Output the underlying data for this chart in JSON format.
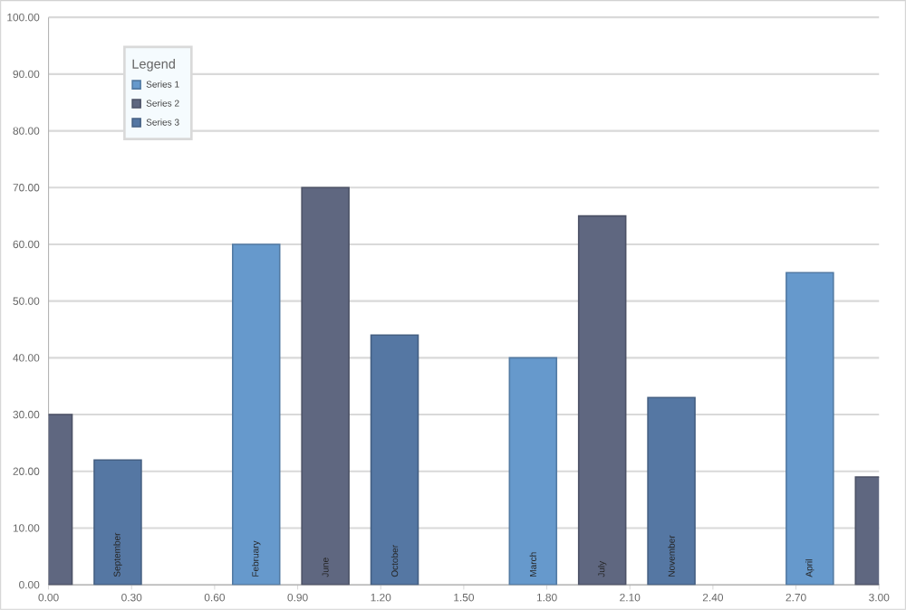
{
  "chart_data": {
    "type": "bar",
    "legend_title": "Legend",
    "legend": "top left",
    "grid": "y",
    "xlim": [
      0,
      3
    ],
    "ylim": [
      0,
      100
    ],
    "xticks": [
      {
        "value": 0,
        "label": "0.00"
      },
      {
        "value": 0.3,
        "label": "0.30"
      },
      {
        "value": 0.6,
        "label": "0.60"
      },
      {
        "value": 0.9,
        "label": "0.90"
      },
      {
        "value": 1.2,
        "label": "1.20"
      },
      {
        "value": 1.5,
        "label": "1.50"
      },
      {
        "value": 1.8,
        "label": "1.80"
      },
      {
        "value": 2.1,
        "label": "2.10"
      },
      {
        "value": 2.4,
        "label": "2.40"
      },
      {
        "value": 2.7,
        "label": "2.70"
      },
      {
        "value": 3,
        "label": "3.00"
      }
    ],
    "yticks": [
      {
        "value": 0,
        "label": "0.00"
      },
      {
        "value": 10,
        "label": "10.00"
      },
      {
        "value": 20,
        "label": "20.00"
      },
      {
        "value": 30,
        "label": "30.00"
      },
      {
        "value": 40,
        "label": "40.00"
      },
      {
        "value": 50,
        "label": "50.00"
      },
      {
        "value": 60,
        "label": "60.00"
      },
      {
        "value": 70,
        "label": "70.00"
      },
      {
        "value": 80,
        "label": "80.00"
      },
      {
        "value": 90,
        "label": "90.00"
      },
      {
        "value": 100,
        "label": "100.00"
      }
    ],
    "series": [
      {
        "name": "Series 1",
        "color": "#6699cc",
        "x": [
          0.75,
          1.75,
          2.75
        ],
        "values": [
          60,
          40,
          55
        ]
      },
      {
        "name": "Series 2",
        "color": "#5f6780",
        "x": [
          0,
          1,
          2,
          3
        ],
        "values": [
          30,
          70,
          65,
          19
        ]
      },
      {
        "name": "Series 3",
        "color": "#5577a3",
        "x": [
          0.25,
          1.25,
          2.25
        ],
        "values": [
          22,
          44,
          33
        ]
      }
    ],
    "annotations": [
      {
        "text": "September",
        "x": 0.25,
        "y": 0
      },
      {
        "text": "February",
        "x": 0.75,
        "y": 0
      },
      {
        "text": "June",
        "x": 1,
        "y": 0
      },
      {
        "text": "October",
        "x": 1.25,
        "y": 0
      },
      {
        "text": "March",
        "x": 1.75,
        "y": 0
      },
      {
        "text": "July",
        "x": 2,
        "y": 0
      },
      {
        "text": "November",
        "x": 2.25,
        "y": 0
      },
      {
        "text": "April",
        "x": 2.75,
        "y": 0
      }
    ]
  }
}
